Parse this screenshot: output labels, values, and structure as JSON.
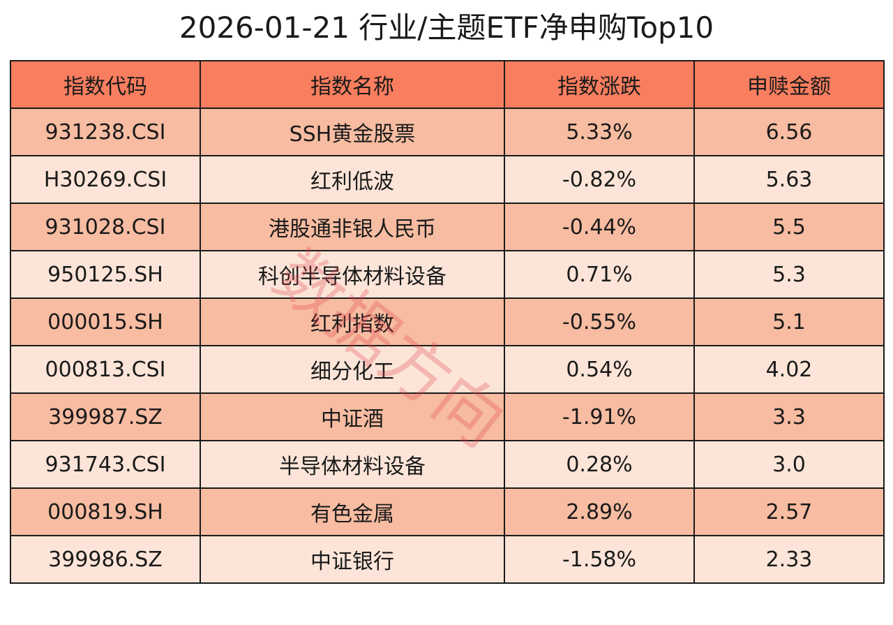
{
  "title": "2026-01-21 行业/主题ETF净申购Top10",
  "watermark": "数据方向",
  "colors": {
    "header": "#f97e5f",
    "row_dark": "#f7bca1",
    "row_light": "#fce5d8"
  },
  "chart_data": {
    "type": "table",
    "title": "2026-01-21 行业/主题ETF净申购Top10",
    "columns": [
      "指数代码",
      "指数名称",
      "指数涨跌",
      "申赎金额"
    ],
    "rows": [
      [
        "931238.CSI",
        "SSH黄金股票",
        "5.33%",
        "6.56"
      ],
      [
        "H30269.CSI",
        "红利低波",
        "-0.82%",
        "5.63"
      ],
      [
        "931028.CSI",
        "港股通非银人民币",
        "-0.44%",
        "5.5"
      ],
      [
        "950125.SH",
        "科创半导体材料设备",
        "0.71%",
        "5.3"
      ],
      [
        "000015.SH",
        "红利指数",
        "-0.55%",
        "5.1"
      ],
      [
        "000813.CSI",
        "细分化工",
        "0.54%",
        "4.02"
      ],
      [
        "399987.SZ",
        "中证酒",
        "-1.91%",
        "3.3"
      ],
      [
        "931743.CSI",
        "半导体材料设备",
        "0.28%",
        "3.0"
      ],
      [
        "000819.SH",
        "有色金属",
        "2.89%",
        "2.57"
      ],
      [
        "399986.SZ",
        "中证银行",
        "-1.58%",
        "2.33"
      ]
    ]
  }
}
